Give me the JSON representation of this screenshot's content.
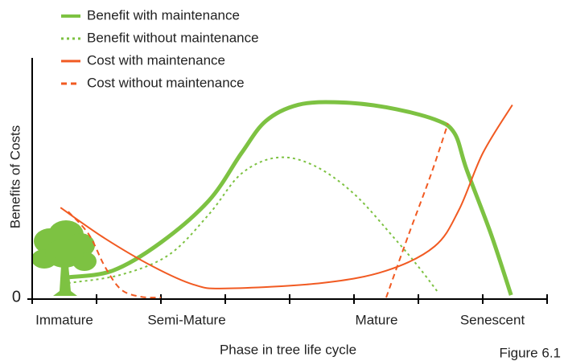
{
  "chart_data": {
    "type": "line",
    "xlabel": "Phase in tree life cycle",
    "ylabel": "Benefits of Costs",
    "caption": "Figure 6.1",
    "xlim": [
      0,
      8
    ],
    "xticks": [
      {
        "value": 0.5,
        "label": "Immature"
      },
      {
        "value": 2.4,
        "label": "Semi-Mature"
      },
      {
        "value": 5.35,
        "label": "Mature"
      },
      {
        "value": 7.15,
        "label": "Senescent"
      }
    ],
    "ylim": [
      0,
      100
    ],
    "yticks": [
      0
    ],
    "series": [
      {
        "name": "Benefit with maintenance",
        "color": "#7dc242",
        "dash": "solid",
        "width": 5,
        "x": [
          0.56,
          1.25,
          2.0,
          2.75,
          3.25,
          3.63,
          4.13,
          4.75,
          5.5,
          6.25,
          6.56,
          6.75,
          7.13,
          7.44
        ],
        "values": [
          8.5,
          11.3,
          23.2,
          41,
          60.8,
          74.4,
          81.2,
          82.3,
          80.2,
          75.1,
          69.3,
          53.9,
          26.6,
          1
        ]
      },
      {
        "name": "Benefit without maintenance",
        "color": "#7dc242",
        "dash": "dotted",
        "width": 2,
        "x": [
          0.56,
          1.38,
          2.13,
          2.75,
          3.25,
          3.81,
          4.38,
          5.0,
          5.63,
          6.0,
          6.31
        ],
        "values": [
          6.1,
          9.6,
          18.1,
          35.2,
          52.2,
          59,
          55.6,
          43.7,
          24.9,
          13,
          2
        ]
      },
      {
        "name": "Cost with maintenance",
        "color": "#f15a22",
        "dash": "solid",
        "width": 2,
        "x": [
          0.44,
          1.13,
          1.88,
          2.5,
          3.0,
          4.5,
          5.5,
          6.25,
          6.63,
          7.0,
          7.46
        ],
        "values": [
          37.9,
          24.9,
          13,
          5.5,
          3.8,
          6.1,
          11.3,
          21.5,
          36.9,
          60.8,
          81.2
        ]
      },
      {
        "name": "Cost without maintenance",
        "color": "#f15a22",
        "dash": "dashed",
        "width": 2,
        "x": [
          0.56,
          0.88,
          1.13,
          1.38,
          1.69,
          2.0,
          4.0,
          5.5,
          5.85,
          6.2,
          6.46
        ],
        "values": [
          36.2,
          26.6,
          13,
          3.4,
          0.3,
          0,
          null,
          0,
          26.6,
          52.2,
          73.4
        ]
      }
    ]
  }
}
